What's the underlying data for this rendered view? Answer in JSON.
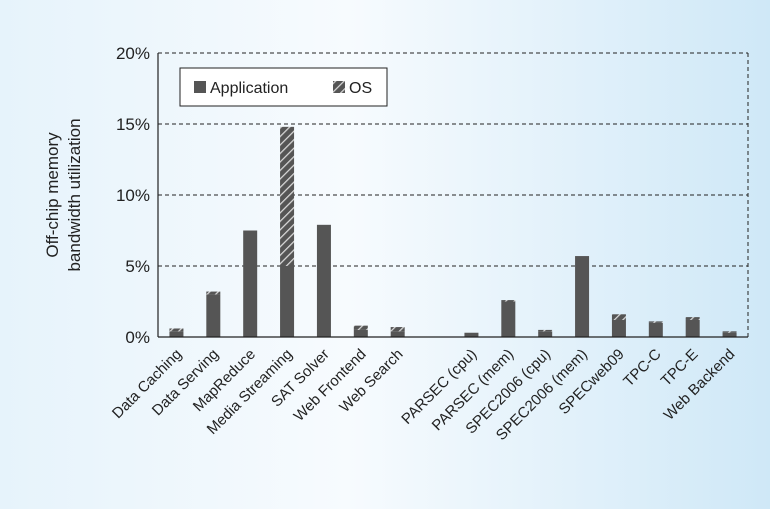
{
  "chart_data": {
    "type": "bar",
    "ylabel": [
      "Off-chip memory",
      "bandwidth utilization"
    ],
    "ylim": [
      0,
      20
    ],
    "yticks": [
      0,
      5,
      10,
      15,
      20
    ],
    "ytick_labels": [
      "0%",
      "5%",
      "10%",
      "15%",
      "20%"
    ],
    "grid": "horizontal dashed",
    "legend_position": "top-left",
    "categories": [
      "Data Caching",
      "Data Serving",
      "MapReduce",
      "Media Streaming",
      "SAT Solver",
      "Web Frontend",
      "Web Search",
      "",
      "PARSEC (cpu)",
      "PARSEC (mem)",
      "SPEC2006 (cpu)",
      "SPEC2006 (mem)",
      "SPECweb09",
      "TPC-C",
      "TPC-E",
      "Web Backend"
    ],
    "series": [
      {
        "name": "Application",
        "color": "#555555",
        "values": [
          0.4,
          3.0,
          7.5,
          5.0,
          7.9,
          0.5,
          0.4,
          0,
          0.3,
          2.5,
          0.4,
          5.7,
          1.2,
          1.0,
          1.2,
          0.3
        ]
      },
      {
        "name": "OS",
        "color": "#555555",
        "pattern": "diagonal-hatch",
        "values": [
          0.2,
          0.2,
          0.0,
          9.8,
          0.0,
          0.3,
          0.3,
          0,
          0.0,
          0.1,
          0.1,
          0.0,
          0.4,
          0.1,
          0.2,
          0.1
        ]
      }
    ]
  }
}
